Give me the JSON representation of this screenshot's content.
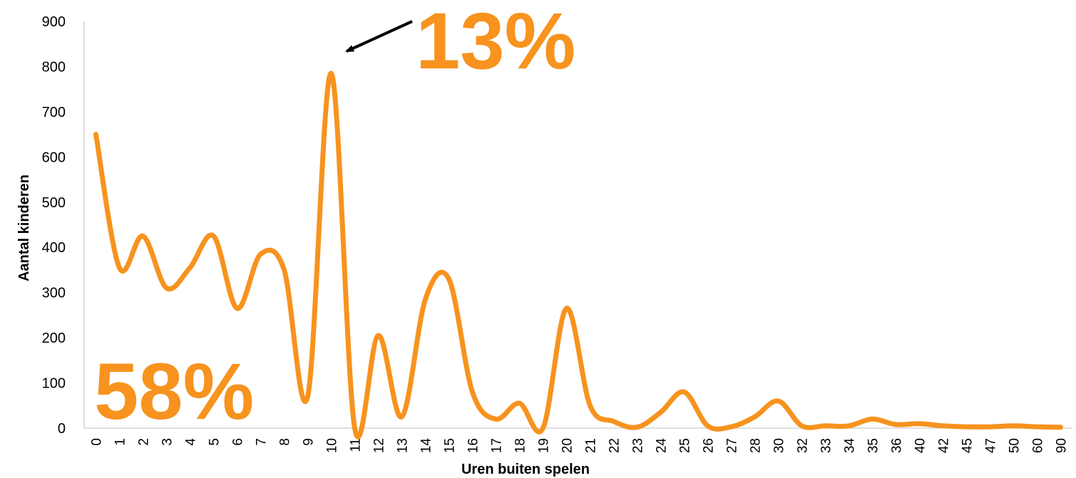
{
  "chart_data": {
    "type": "line",
    "title": "",
    "xlabel": "Uren buiten spelen",
    "ylabel": "Aantal kinderen",
    "ylim": [
      0,
      900
    ],
    "yticks": [
      0,
      100,
      200,
      300,
      400,
      500,
      600,
      700,
      800,
      900
    ],
    "grid": false,
    "legend": "none",
    "categories": [
      "0",
      "1",
      "2",
      "3",
      "4",
      "5",
      "6",
      "7",
      "8",
      "9",
      "10",
      "11",
      "12",
      "13",
      "14",
      "15",
      "16",
      "17",
      "18",
      "19",
      "20",
      "21",
      "22",
      "23",
      "24",
      "25",
      "26",
      "27",
      "28",
      "30",
      "32",
      "33",
      "34",
      "35",
      "36",
      "40",
      "42",
      "45",
      "47",
      "50",
      "60",
      "90"
    ],
    "series": [
      {
        "values": [
          650,
          355,
          425,
          310,
          355,
          425,
          265,
          385,
          350,
          70,
          785,
          0,
          205,
          25,
          285,
          330,
          80,
          20,
          55,
          0,
          265,
          50,
          15,
          2,
          35,
          80,
          5,
          3,
          25,
          60,
          5,
          5,
          5,
          20,
          8,
          10,
          5,
          3,
          3,
          5,
          3,
          2
        ],
        "color": "#F7931E"
      }
    ],
    "annotations": [
      {
        "text": "13%",
        "arrow_to_category": "10",
        "color": "#F7931E"
      },
      {
        "text": "58%",
        "color": "#F7931E"
      }
    ]
  }
}
